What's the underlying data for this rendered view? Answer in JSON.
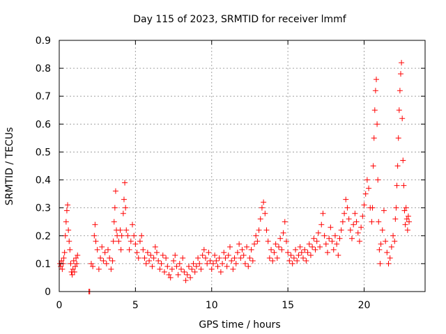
{
  "chart_data": {
    "type": "scatter",
    "title": "Day 115 of 2023, SRMTID for receiver lmmf",
    "xlabel": "GPS time / hours",
    "ylabel": "SRMTID / TECUs",
    "xlim": [
      0,
      24
    ],
    "ylim": [
      0,
      0.9
    ],
    "xticks": [
      0,
      5,
      10,
      15,
      20
    ],
    "yticks": [
      0,
      0.1,
      0.2,
      0.3,
      0.4,
      0.5,
      0.6,
      0.7,
      0.8,
      0.9
    ],
    "grid": true,
    "marker": "+",
    "series": [
      {
        "name": "SRMTID",
        "color": "#ff0000",
        "points": [
          [
            0.05,
            0.1
          ],
          [
            0.1,
            0.09
          ],
          [
            0.15,
            0.11
          ],
          [
            0.2,
            0.08
          ],
          [
            0.25,
            0.1
          ],
          [
            0.3,
            0.12
          ],
          [
            0.35,
            0.14
          ],
          [
            0.4,
            0.2
          ],
          [
            0.45,
            0.25
          ],
          [
            0.5,
            0.29
          ],
          [
            0.55,
            0.31
          ],
          [
            0.6,
            0.22
          ],
          [
            0.65,
            0.18
          ],
          [
            0.7,
            0.15
          ],
          [
            0.75,
            0.1
          ],
          [
            0.8,
            0.07
          ],
          [
            0.85,
            0.06
          ],
          [
            0.9,
            0.08
          ],
          [
            0.95,
            0.11
          ],
          [
            1.0,
            0.07
          ],
          [
            1.05,
            0.09
          ],
          [
            1.1,
            0.12
          ],
          [
            1.15,
            0.1
          ],
          [
            1.2,
            0.13
          ],
          [
            1.95,
            0.0
          ],
          [
            2.0,
            0.0
          ],
          [
            2.1,
            0.1
          ],
          [
            2.2,
            0.09
          ],
          [
            2.3,
            0.2
          ],
          [
            2.35,
            0.24
          ],
          [
            2.4,
            0.18
          ],
          [
            2.5,
            0.15
          ],
          [
            2.6,
            0.08
          ],
          [
            2.7,
            0.12
          ],
          [
            2.8,
            0.16
          ],
          [
            2.9,
            0.11
          ],
          [
            3.0,
            0.14
          ],
          [
            3.1,
            0.1
          ],
          [
            3.2,
            0.15
          ],
          [
            3.3,
            0.12
          ],
          [
            3.4,
            0.08
          ],
          [
            3.5,
            0.11
          ],
          [
            3.55,
            0.18
          ],
          [
            3.6,
            0.25
          ],
          [
            3.65,
            0.3
          ],
          [
            3.7,
            0.36
          ],
          [
            3.75,
            0.22
          ],
          [
            3.8,
            0.2
          ],
          [
            3.9,
            0.18
          ],
          [
            4.0,
            0.22
          ],
          [
            4.05,
            0.15
          ],
          [
            4.1,
            0.2
          ],
          [
            4.2,
            0.28
          ],
          [
            4.25,
            0.33
          ],
          [
            4.3,
            0.39
          ],
          [
            4.35,
            0.3
          ],
          [
            4.4,
            0.22
          ],
          [
            4.5,
            0.2
          ],
          [
            4.6,
            0.15
          ],
          [
            4.7,
            0.18
          ],
          [
            4.8,
            0.24
          ],
          [
            4.9,
            0.2
          ],
          [
            5.0,
            0.17
          ],
          [
            5.1,
            0.14
          ],
          [
            5.2,
            0.12
          ],
          [
            5.3,
            0.18
          ],
          [
            5.4,
            0.2
          ],
          [
            5.5,
            0.15
          ],
          [
            5.6,
            0.12
          ],
          [
            5.7,
            0.1
          ],
          [
            5.8,
            0.14
          ],
          [
            5.9,
            0.11
          ],
          [
            6.0,
            0.13
          ],
          [
            6.1,
            0.09
          ],
          [
            6.2,
            0.12
          ],
          [
            6.3,
            0.16
          ],
          [
            6.4,
            0.14
          ],
          [
            6.5,
            0.11
          ],
          [
            6.6,
            0.08
          ],
          [
            6.7,
            0.1
          ],
          [
            6.8,
            0.13
          ],
          [
            6.9,
            0.07
          ],
          [
            7.0,
            0.12
          ],
          [
            7.1,
            0.09
          ],
          [
            7.2,
            0.06
          ],
          [
            7.3,
            0.05
          ],
          [
            7.4,
            0.08
          ],
          [
            7.5,
            0.11
          ],
          [
            7.6,
            0.13
          ],
          [
            7.7,
            0.09
          ],
          [
            7.8,
            0.06
          ],
          [
            7.9,
            0.1
          ],
          [
            8.0,
            0.08
          ],
          [
            8.1,
            0.12
          ],
          [
            8.2,
            0.07
          ],
          [
            8.3,
            0.04
          ],
          [
            8.4,
            0.06
          ],
          [
            8.5,
            0.09
          ],
          [
            8.6,
            0.05
          ],
          [
            8.7,
            0.08
          ],
          [
            8.8,
            0.1
          ],
          [
            8.9,
            0.07
          ],
          [
            9.0,
            0.09
          ],
          [
            9.1,
            0.12
          ],
          [
            9.2,
            0.1
          ],
          [
            9.3,
            0.08
          ],
          [
            9.4,
            0.13
          ],
          [
            9.5,
            0.15
          ],
          [
            9.6,
            0.12
          ],
          [
            9.7,
            0.1
          ],
          [
            9.8,
            0.14
          ],
          [
            9.9,
            0.11
          ],
          [
            10.0,
            0.08
          ],
          [
            10.1,
            0.1
          ],
          [
            10.2,
            0.13
          ],
          [
            10.3,
            0.11
          ],
          [
            10.4,
            0.09
          ],
          [
            10.5,
            0.12
          ],
          [
            10.6,
            0.07
          ],
          [
            10.7,
            0.1
          ],
          [
            10.8,
            0.14
          ],
          [
            10.9,
            0.12
          ],
          [
            11.0,
            0.09
          ],
          [
            11.1,
            0.13
          ],
          [
            11.2,
            0.16
          ],
          [
            11.3,
            0.11
          ],
          [
            11.4,
            0.08
          ],
          [
            11.5,
            0.12
          ],
          [
            11.6,
            0.1
          ],
          [
            11.7,
            0.14
          ],
          [
            11.8,
            0.17
          ],
          [
            11.9,
            0.12
          ],
          [
            12.0,
            0.15
          ],
          [
            12.1,
            0.13
          ],
          [
            12.2,
            0.1
          ],
          [
            12.3,
            0.16
          ],
          [
            12.4,
            0.09
          ],
          [
            12.5,
            0.12
          ],
          [
            12.6,
            0.15
          ],
          [
            12.7,
            0.11
          ],
          [
            12.8,
            0.17
          ],
          [
            12.9,
            0.2
          ],
          [
            13.0,
            0.18
          ],
          [
            13.1,
            0.22
          ],
          [
            13.2,
            0.26
          ],
          [
            13.3,
            0.3
          ],
          [
            13.4,
            0.32
          ],
          [
            13.5,
            0.28
          ],
          [
            13.6,
            0.22
          ],
          [
            13.7,
            0.18
          ],
          [
            13.8,
            0.12
          ],
          [
            13.9,
            0.15
          ],
          [
            14.0,
            0.11
          ],
          [
            14.1,
            0.14
          ],
          [
            14.2,
            0.17
          ],
          [
            14.3,
            0.12
          ],
          [
            14.4,
            0.16
          ],
          [
            14.5,
            0.19
          ],
          [
            14.6,
            0.15
          ],
          [
            14.7,
            0.21
          ],
          [
            14.8,
            0.25
          ],
          [
            14.9,
            0.18
          ],
          [
            15.0,
            0.14
          ],
          [
            15.1,
            0.11
          ],
          [
            15.2,
            0.13
          ],
          [
            15.3,
            0.1
          ],
          [
            15.4,
            0.12
          ],
          [
            15.5,
            0.15
          ],
          [
            15.6,
            0.11
          ],
          [
            15.7,
            0.13
          ],
          [
            15.8,
            0.16
          ],
          [
            15.9,
            0.14
          ],
          [
            16.0,
            0.12
          ],
          [
            16.1,
            0.15
          ],
          [
            16.2,
            0.11
          ],
          [
            16.3,
            0.14
          ],
          [
            16.4,
            0.17
          ],
          [
            16.5,
            0.13
          ],
          [
            16.6,
            0.16
          ],
          [
            16.7,
            0.19
          ],
          [
            16.8,
            0.15
          ],
          [
            16.9,
            0.18
          ],
          [
            17.0,
            0.21
          ],
          [
            17.1,
            0.16
          ],
          [
            17.2,
            0.24
          ],
          [
            17.3,
            0.28
          ],
          [
            17.4,
            0.2
          ],
          [
            17.5,
            0.17
          ],
          [
            17.6,
            0.14
          ],
          [
            17.7,
            0.19
          ],
          [
            17.8,
            0.23
          ],
          [
            17.9,
            0.18
          ],
          [
            18.0,
            0.15
          ],
          [
            18.1,
            0.2
          ],
          [
            18.2,
            0.17
          ],
          [
            18.3,
            0.13
          ],
          [
            18.4,
            0.19
          ],
          [
            18.5,
            0.22
          ],
          [
            18.6,
            0.25
          ],
          [
            18.7,
            0.28
          ],
          [
            18.8,
            0.33
          ],
          [
            18.9,
            0.3
          ],
          [
            19.0,
            0.26
          ],
          [
            19.1,
            0.22
          ],
          [
            19.2,
            0.19
          ],
          [
            19.3,
            0.24
          ],
          [
            19.4,
            0.28
          ],
          [
            19.5,
            0.25
          ],
          [
            19.6,
            0.21
          ],
          [
            19.7,
            0.18
          ],
          [
            19.8,
            0.23
          ],
          [
            19.9,
            0.27
          ],
          [
            20.0,
            0.31
          ],
          [
            20.1,
            0.35
          ],
          [
            20.2,
            0.4
          ],
          [
            20.3,
            0.37
          ],
          [
            20.4,
            0.3
          ],
          [
            20.5,
            0.25
          ],
          [
            20.55,
            0.3
          ],
          [
            20.6,
            0.45
          ],
          [
            20.65,
            0.55
          ],
          [
            20.7,
            0.65
          ],
          [
            20.75,
            0.72
          ],
          [
            20.8,
            0.76
          ],
          [
            20.85,
            0.6
          ],
          [
            20.9,
            0.4
          ],
          [
            20.95,
            0.25
          ],
          [
            21.0,
            0.15
          ],
          [
            21.05,
            0.1
          ],
          [
            21.1,
            0.17
          ],
          [
            21.2,
            0.22
          ],
          [
            21.3,
            0.29
          ],
          [
            21.4,
            0.18
          ],
          [
            21.5,
            0.14
          ],
          [
            21.6,
            0.1
          ],
          [
            21.7,
            0.12
          ],
          [
            21.8,
            0.16
          ],
          [
            21.9,
            0.2
          ],
          [
            22.0,
            0.18
          ],
          [
            22.05,
            0.26
          ],
          [
            22.1,
            0.3
          ],
          [
            22.15,
            0.38
          ],
          [
            22.2,
            0.45
          ],
          [
            22.25,
            0.55
          ],
          [
            22.3,
            0.65
          ],
          [
            22.35,
            0.72
          ],
          [
            22.4,
            0.78
          ],
          [
            22.45,
            0.82
          ],
          [
            22.5,
            0.62
          ],
          [
            22.55,
            0.47
          ],
          [
            22.6,
            0.38
          ],
          [
            22.65,
            0.29
          ],
          [
            22.7,
            0.24
          ],
          [
            22.75,
            0.3
          ],
          [
            22.8,
            0.26
          ],
          [
            22.85,
            0.22
          ],
          [
            22.9,
            0.27
          ],
          [
            22.95,
            0.25
          ]
        ]
      }
    ]
  }
}
